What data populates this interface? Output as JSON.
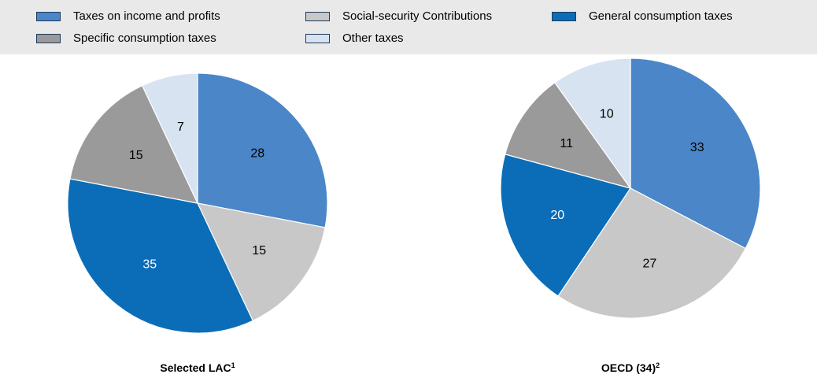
{
  "legend": [
    {
      "key": "income",
      "label": "Taxes on income and profits",
      "color": "#4a86c8"
    },
    {
      "key": "ssc",
      "label": "Social-security Contributions",
      "color": "#c8c8c8"
    },
    {
      "key": "general",
      "label": "General consumption taxes",
      "color": "#0b6db7"
    },
    {
      "key": "specific",
      "label": "Specific consumption taxes",
      "color": "#9a9a9a"
    },
    {
      "key": "other",
      "label": "Other taxes",
      "color": "#d8e3f1"
    }
  ],
  "chart_data": [
    {
      "type": "pie",
      "title": "Selected LAC",
      "title_sup": "1",
      "slices": [
        {
          "key": "income",
          "value": 28
        },
        {
          "key": "ssc",
          "value": 15
        },
        {
          "key": "general",
          "value": 35
        },
        {
          "key": "specific",
          "value": 15
        },
        {
          "key": "other",
          "value": 7
        }
      ]
    },
    {
      "type": "pie",
      "title": "OECD (34)",
      "title_sup": "2",
      "slices": [
        {
          "key": "income",
          "value": 33
        },
        {
          "key": "ssc",
          "value": 27
        },
        {
          "key": "general",
          "value": 20
        },
        {
          "key": "specific",
          "value": 11
        },
        {
          "key": "other",
          "value": 10
        }
      ]
    }
  ]
}
